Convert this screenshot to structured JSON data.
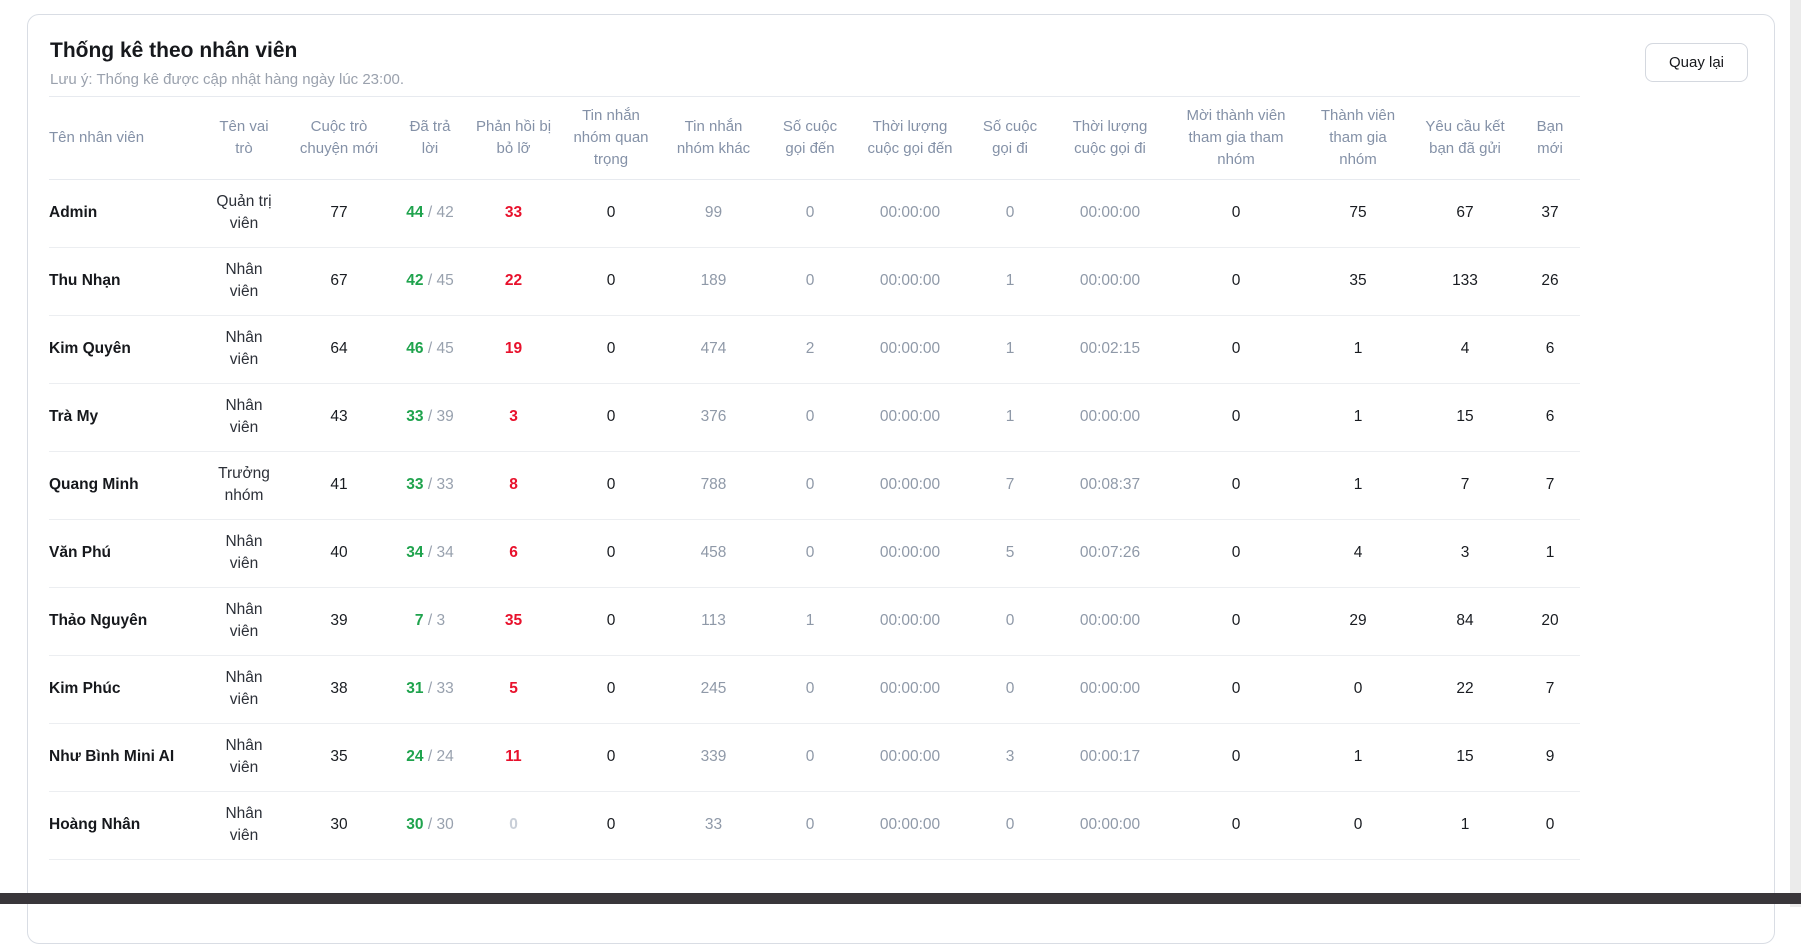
{
  "page": {
    "title": "Thống kê theo nhân viên",
    "subtitle": "Lưu ý: Thống kê được cập nhật hàng ngày lúc 23:00.",
    "back_button": "Quay lại"
  },
  "colors": {
    "answered_green": "#1fa34d",
    "missed_red": "#e8112c",
    "muted_gray": "#8f99a8",
    "header_text": "#8491a7",
    "dark_text": "#191c21",
    "scrollbar_dark": "#39363a"
  },
  "table": {
    "columns": [
      {
        "key": "name",
        "label": "Tên nhân viên"
      },
      {
        "key": "role",
        "label": "Tên vai trò"
      },
      {
        "key": "new_conversations",
        "label": "Cuộc trò chuyện mới"
      },
      {
        "key": "answered",
        "label": "Đã trả lời"
      },
      {
        "key": "missed",
        "label": "Phản hồi bị bỏ lỡ"
      },
      {
        "key": "group_important",
        "label": "Tin nhắn nhóm quan trọng"
      },
      {
        "key": "group_other",
        "label": "Tin nhắn nhóm khác"
      },
      {
        "key": "calls_in",
        "label": "Số cuộc gọi đến"
      },
      {
        "key": "call_in_duration",
        "label": "Thời lượng cuộc gọi đến"
      },
      {
        "key": "calls_out",
        "label": "Số cuộc gọi đi"
      },
      {
        "key": "call_out_duration",
        "label": "Thời lượng cuộc gọi đi"
      },
      {
        "key": "invited",
        "label": "Mời thành viên tham gia tham nhóm"
      },
      {
        "key": "joined",
        "label": "Thành viên tham gia nhóm"
      },
      {
        "key": "friend_requests",
        "label": "Yêu cầu kết bạn đã gửi"
      },
      {
        "key": "new_friends",
        "label": "Bạn mới"
      }
    ],
    "rows": [
      {
        "name": "Admin",
        "role": "Quản trị viên",
        "new_conversations": "77",
        "answered": "44",
        "answered_total": "42",
        "missed": "33",
        "group_important": "0",
        "group_other": "99",
        "calls_in": "0",
        "call_in_duration": "00:00:00",
        "calls_out": "0",
        "call_out_duration": "00:00:00",
        "invited": "0",
        "joined": "75",
        "friend_requests": "67",
        "new_friends": "37"
      },
      {
        "name": "Thu Nhạn",
        "role": "Nhân viên",
        "new_conversations": "67",
        "answered": "42",
        "answered_total": "45",
        "missed": "22",
        "group_important": "0",
        "group_other": "189",
        "calls_in": "0",
        "call_in_duration": "00:00:00",
        "calls_out": "1",
        "call_out_duration": "00:00:00",
        "invited": "0",
        "joined": "35",
        "friend_requests": "133",
        "new_friends": "26"
      },
      {
        "name": "Kim Quyên",
        "role": "Nhân viên",
        "new_conversations": "64",
        "answered": "46",
        "answered_total": "45",
        "missed": "19",
        "group_important": "0",
        "group_other": "474",
        "calls_in": "2",
        "call_in_duration": "00:00:00",
        "calls_out": "1",
        "call_out_duration": "00:02:15",
        "invited": "0",
        "joined": "1",
        "friend_requests": "4",
        "new_friends": "6"
      },
      {
        "name": "Trà My",
        "role": "Nhân viên",
        "new_conversations": "43",
        "answered": "33",
        "answered_total": "39",
        "missed": "3",
        "group_important": "0",
        "group_other": "376",
        "calls_in": "0",
        "call_in_duration": "00:00:00",
        "calls_out": "1",
        "call_out_duration": "00:00:00",
        "invited": "0",
        "joined": "1",
        "friend_requests": "15",
        "new_friends": "6"
      },
      {
        "name": "Quang Minh",
        "role": "Trưởng nhóm",
        "new_conversations": "41",
        "answered": "33",
        "answered_total": "33",
        "missed": "8",
        "group_important": "0",
        "group_other": "788",
        "calls_in": "0",
        "call_in_duration": "00:00:00",
        "calls_out": "7",
        "call_out_duration": "00:08:37",
        "invited": "0",
        "joined": "1",
        "friend_requests": "7",
        "new_friends": "7"
      },
      {
        "name": "Văn Phú",
        "role": "Nhân viên",
        "new_conversations": "40",
        "answered": "34",
        "answered_total": "34",
        "missed": "6",
        "group_important": "0",
        "group_other": "458",
        "calls_in": "0",
        "call_in_duration": "00:00:00",
        "calls_out": "5",
        "call_out_duration": "00:07:26",
        "invited": "0",
        "joined": "4",
        "friend_requests": "3",
        "new_friends": "1"
      },
      {
        "name": "Thảo Nguyên",
        "role": "Nhân viên",
        "new_conversations": "39",
        "answered": "7",
        "answered_total": "3",
        "missed": "35",
        "group_important": "0",
        "group_other": "113",
        "calls_in": "1",
        "call_in_duration": "00:00:00",
        "calls_out": "0",
        "call_out_duration": "00:00:00",
        "invited": "0",
        "joined": "29",
        "friend_requests": "84",
        "new_friends": "20"
      },
      {
        "name": "Kim Phúc",
        "role": "Nhân viên",
        "new_conversations": "38",
        "answered": "31",
        "answered_total": "33",
        "missed": "5",
        "group_important": "0",
        "group_other": "245",
        "calls_in": "0",
        "call_in_duration": "00:00:00",
        "calls_out": "0",
        "call_out_duration": "00:00:00",
        "invited": "0",
        "joined": "0",
        "friend_requests": "22",
        "new_friends": "7"
      },
      {
        "name": "Như Bình Mini AI",
        "role": "Nhân viên",
        "new_conversations": "35",
        "answered": "24",
        "answered_total": "24",
        "missed": "11",
        "group_important": "0",
        "group_other": "339",
        "calls_in": "0",
        "call_in_duration": "00:00:00",
        "calls_out": "3",
        "call_out_duration": "00:00:17",
        "invited": "0",
        "joined": "1",
        "friend_requests": "15",
        "new_friends": "9"
      },
      {
        "name": "Hoàng Nhân",
        "role": "Nhân viên",
        "new_conversations": "30",
        "answered": "30",
        "answered_total": "30",
        "missed": "0",
        "group_important": "0",
        "group_other": "33",
        "calls_in": "0",
        "call_in_duration": "00:00:00",
        "calls_out": "0",
        "call_out_duration": "00:00:00",
        "invited": "0",
        "joined": "0",
        "friend_requests": "1",
        "new_friends": "0"
      }
    ]
  }
}
